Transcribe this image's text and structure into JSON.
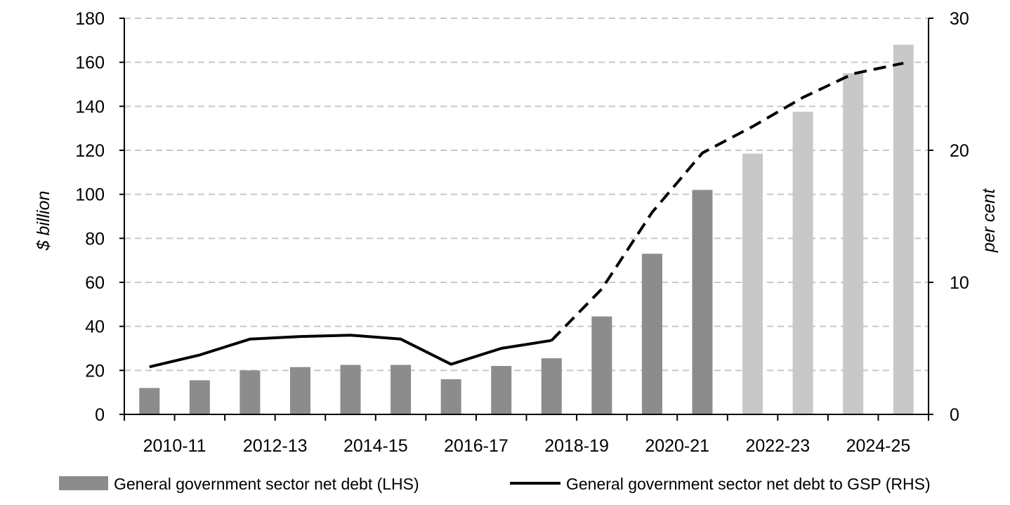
{
  "chart_data": {
    "type": "bar",
    "categories": [
      "2010-11",
      "2011-12",
      "2012-13",
      "2013-14",
      "2014-15",
      "2015-16",
      "2016-17",
      "2017-18",
      "2018-19",
      "2019-20",
      "2020-21",
      "2021-22",
      "2022-23",
      "2023-24",
      "2024-25",
      "2025-26"
    ],
    "x_tick_labels": [
      "2010-11",
      "2012-13",
      "2014-15",
      "2016-17",
      "2018-19",
      "2020-21",
      "2022-23",
      "2024-25"
    ],
    "ylabel_left": "$ billion",
    "ylabel_right": "per cent",
    "ylim_left": [
      0,
      180
    ],
    "yticks_left": [
      "0",
      "20",
      "40",
      "60",
      "80",
      "100",
      "120",
      "140",
      "160",
      "180"
    ],
    "ylim_right": [
      0,
      30
    ],
    "yticks_right": [
      "0",
      "10",
      "20",
      "30"
    ],
    "grid": true,
    "legend_placement": "bottom",
    "series": [
      {
        "name": "General government sector net debt (LHS)",
        "type": "bar",
        "axis": "left",
        "values": [
          12,
          15.5,
          20,
          21.5,
          22.5,
          22.5,
          16,
          22,
          25.5,
          44.5,
          73,
          102,
          118.5,
          137.5,
          155,
          168
        ],
        "colors": [
          "#8c8c8c",
          "#8c8c8c",
          "#8c8c8c",
          "#8c8c8c",
          "#8c8c8c",
          "#8c8c8c",
          "#8c8c8c",
          "#8c8c8c",
          "#8c8c8c",
          "#8c8c8c",
          "#8c8c8c",
          "#8c8c8c",
          "#c8c8c8",
          "#c8c8c8",
          "#c8c8c8",
          "#c8c8c8"
        ]
      },
      {
        "name": "General government sector net debt to GSP (RHS)",
        "type": "line",
        "axis": "right",
        "values": [
          3.6,
          4.5,
          5.7,
          5.9,
          6.0,
          5.7,
          3.8,
          5.0,
          5.6,
          9.5,
          15.3,
          19.8,
          21.8,
          24.0,
          25.8,
          26.6
        ],
        "line_style": [
          "solid",
          "solid",
          "solid",
          "solid",
          "solid",
          "solid",
          "solid",
          "solid",
          "solid",
          "dashed",
          "dashed",
          "dashed",
          "dashed",
          "dashed",
          "dashed",
          "dashed"
        ],
        "color": "#000000"
      }
    ]
  },
  "legend": {
    "bar_label": "General government sector net debt (LHS)",
    "line_label": "General government sector net debt to GSP (RHS)",
    "bar_color": "#8c8c8c",
    "line_color": "#000000"
  }
}
